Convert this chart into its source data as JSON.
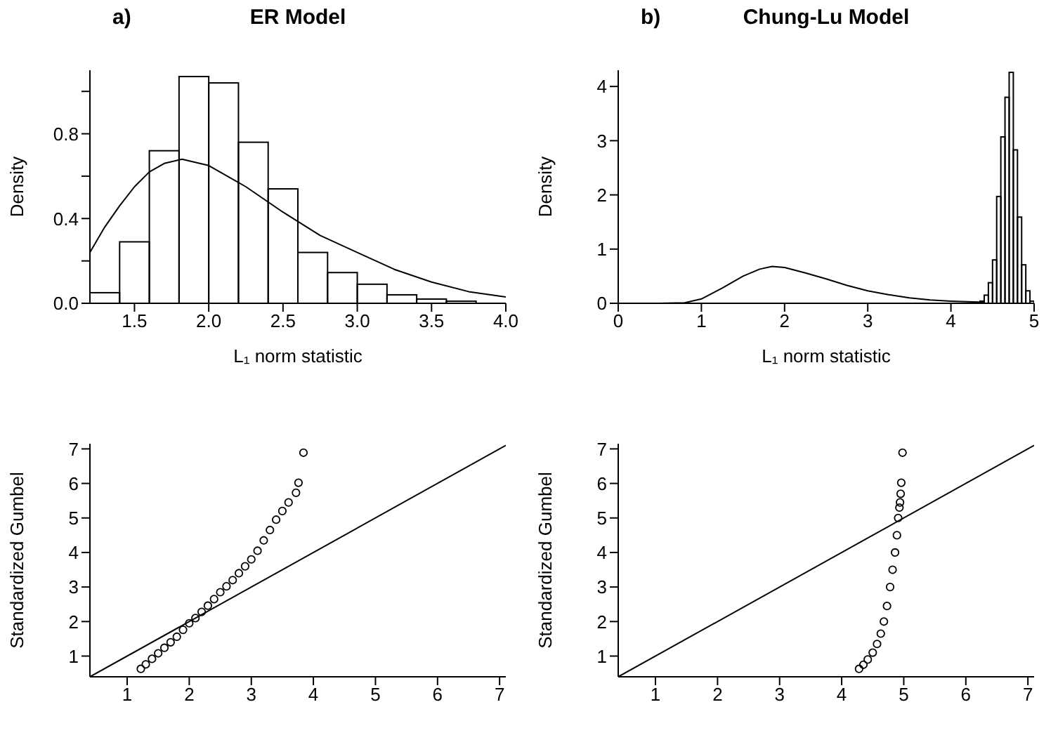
{
  "chart_data": [
    {
      "type": "histogram",
      "title": "ER Model",
      "annotations": [
        "a)"
      ],
      "xlabel": "L₁ norm statistic",
      "ylabel": "Density",
      "xlim": [
        1.2,
        4.0
      ],
      "xticks": [
        1.5,
        {
          "value": 2,
          "label": "2.0"
        },
        2.5,
        {
          "value": 3,
          "label": "3.0"
        },
        3.5,
        {
          "value": 4,
          "label": "4.0"
        }
      ],
      "ylim": [
        0,
        1.1
      ],
      "yticks": [
        {
          "value": 0,
          "label": "0.0"
        },
        {
          "value": 0.2,
          "label": null
        },
        0.4,
        {
          "value": 0.6,
          "label": null
        },
        0.8,
        {
          "value": 1,
          "label": null
        }
      ],
      "series": [
        {
          "color": "#000000",
          "bins": [
            1.2,
            1.4,
            1.6,
            1.8,
            2.0,
            2.2,
            2.4,
            2.6,
            2.8,
            3.0,
            3.2,
            3.4,
            3.6,
            3.8
          ],
          "values": [
            0.05,
            0.29,
            0.72,
            1.07,
            1.04,
            0.76,
            0.54,
            0.24,
            0.145,
            0.09,
            0.04,
            0.02,
            0.01
          ]
        },
        {
          "type": "line",
          "color": "#000000",
          "x": [
            1.2,
            1.3,
            1.4,
            1.5,
            1.6,
            1.7,
            1.82,
            2.0,
            2.25,
            2.5,
            2.75,
            3.0,
            3.25,
            3.5,
            3.75,
            4.0
          ],
          "values": [
            0.24,
            0.36,
            0.46,
            0.55,
            0.62,
            0.66,
            0.68,
            0.65,
            0.55,
            0.43,
            0.32,
            0.24,
            0.16,
            0.1,
            0.055,
            0.03
          ]
        }
      ]
    },
    {
      "type": "histogram",
      "title": "Chung-Lu Model",
      "annotations": [
        "b)"
      ],
      "xlabel": "L₁ norm statistic",
      "ylabel": "Density",
      "xlim": [
        0,
        5
      ],
      "xticks": [
        0,
        1,
        2,
        3,
        4,
        5
      ],
      "ylim": [
        0,
        4.3
      ],
      "yticks": [
        0,
        1,
        2,
        3,
        4
      ],
      "series": [
        {
          "color": "#000000",
          "bins": [
            4.35,
            4.4,
            4.45,
            4.5,
            4.55,
            4.6,
            4.65,
            4.7,
            4.75,
            4.8,
            4.85,
            4.9,
            4.95,
            5.0
          ],
          "values": [
            0.04,
            0.15,
            0.38,
            0.8,
            1.97,
            3.07,
            3.8,
            4.26,
            2.83,
            1.59,
            0.71,
            0.23,
            0.04
          ]
        },
        {
          "type": "line",
          "color": "#000000",
          "x": [
            0,
            0.5,
            0.8,
            1.0,
            1.25,
            1.5,
            1.7,
            1.85,
            2.0,
            2.25,
            2.5,
            2.75,
            3.0,
            3.25,
            3.5,
            3.75,
            4.0,
            4.4
          ],
          "values": [
            0,
            0,
            0.01,
            0.08,
            0.28,
            0.5,
            0.63,
            0.68,
            0.66,
            0.56,
            0.45,
            0.33,
            0.23,
            0.16,
            0.1,
            0.06,
            0.04,
            0.02
          ]
        }
      ]
    },
    {
      "type": "scatter",
      "ylabel": "Standardized Gumbel",
      "xlim": [
        0.4,
        7.1
      ],
      "xticks": [
        1,
        2,
        3,
        4,
        5,
        6,
        7
      ],
      "ylim": [
        0.4,
        7.15
      ],
      "yticks": [
        1,
        2,
        3,
        4,
        5,
        6,
        7
      ],
      "series": [
        {
          "marker": "circle",
          "color": "#000000",
          "x": [
            1.22,
            1.3,
            1.4,
            1.5,
            1.6,
            1.7,
            1.8,
            1.9,
            2.0,
            2.1,
            2.2,
            2.3,
            2.4,
            2.5,
            2.6,
            2.7,
            2.8,
            2.9,
            3.0,
            3.1,
            3.2,
            3.3,
            3.4,
            3.5,
            3.6,
            3.72,
            3.76,
            3.84
          ],
          "values": [
            0.63,
            0.76,
            0.92,
            1.08,
            1.24,
            1.4,
            1.56,
            1.76,
            1.95,
            2.1,
            2.28,
            2.46,
            2.65,
            2.85,
            3.02,
            3.2,
            3.4,
            3.6,
            3.8,
            4.05,
            4.35,
            4.65,
            4.95,
            5.2,
            5.45,
            5.73,
            6.02,
            6.89
          ]
        },
        {
          "type": "line",
          "color": "#000000",
          "x": [
            0.4,
            7.1
          ],
          "values": [
            0.4,
            7.1
          ]
        }
      ]
    },
    {
      "type": "scatter",
      "ylabel": "Standardized Gumbel",
      "xlim": [
        0.4,
        7.1
      ],
      "xticks": [
        1,
        2,
        3,
        4,
        5,
        6,
        7
      ],
      "ylim": [
        0.4,
        7.15
      ],
      "yticks": [
        1,
        2,
        3,
        4,
        5,
        6,
        7
      ],
      "series": [
        {
          "marker": "circle",
          "color": "#000000",
          "x": [
            4.28,
            4.35,
            4.42,
            4.5,
            4.57,
            4.63,
            4.68,
            4.73,
            4.78,
            4.82,
            4.86,
            4.89,
            4.91,
            4.93,
            4.94,
            4.95,
            4.96,
            4.98
          ],
          "values": [
            0.63,
            0.75,
            0.9,
            1.1,
            1.35,
            1.65,
            2.0,
            2.45,
            3.0,
            3.5,
            4.0,
            4.5,
            5.0,
            5.3,
            5.45,
            5.7,
            6.02,
            6.89
          ]
        },
        {
          "type": "line",
          "color": "#000000",
          "x": [
            0.4,
            7.1
          ],
          "values": [
            0.4,
            7.1
          ]
        }
      ]
    }
  ]
}
